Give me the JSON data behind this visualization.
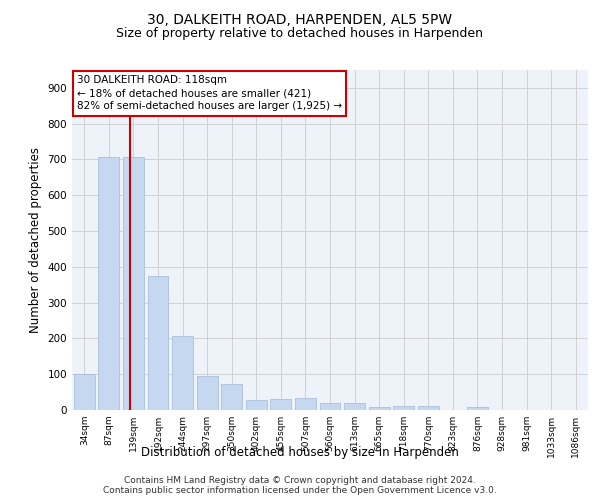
{
  "title": "30, DALKEITH ROAD, HARPENDEN, AL5 5PW",
  "subtitle": "Size of property relative to detached houses in Harpenden",
  "xlabel": "Distribution of detached houses by size in Harpenden",
  "ylabel": "Number of detached properties",
  "categories": [
    "34sqm",
    "87sqm",
    "139sqm",
    "192sqm",
    "244sqm",
    "297sqm",
    "350sqm",
    "402sqm",
    "455sqm",
    "507sqm",
    "560sqm",
    "613sqm",
    "665sqm",
    "718sqm",
    "770sqm",
    "823sqm",
    "876sqm",
    "928sqm",
    "981sqm",
    "1033sqm",
    "1086sqm"
  ],
  "values": [
    100,
    707,
    707,
    375,
    207,
    96,
    72,
    29,
    30,
    33,
    20,
    20,
    9,
    10,
    10,
    0,
    8,
    0,
    0,
    0,
    0
  ],
  "bar_color": "#c5d8f0",
  "bar_edgecolor": "#a0b8d8",
  "vline_x_index": 1.85,
  "vline_color": "#cc0000",
  "annotation_line1": "30 DALKEITH ROAD: 118sqm",
  "annotation_line2": "← 18% of detached houses are smaller (421)",
  "annotation_line3": "82% of semi-detached houses are larger (1,925) →",
  "annotation_box_color": "#ffffff",
  "annotation_box_edgecolor": "#cc0000",
  "ylim": [
    0,
    950
  ],
  "yticks": [
    0,
    100,
    200,
    300,
    400,
    500,
    600,
    700,
    800,
    900
  ],
  "grid_color": "#cccccc",
  "background_color": "#eef3fa",
  "footer": "Contains HM Land Registry data © Crown copyright and database right 2024.\nContains public sector information licensed under the Open Government Licence v3.0.",
  "title_fontsize": 10,
  "subtitle_fontsize": 9,
  "xlabel_fontsize": 8.5,
  "ylabel_fontsize": 8.5,
  "footer_fontsize": 6.5,
  "annot_fontsize": 7.5
}
